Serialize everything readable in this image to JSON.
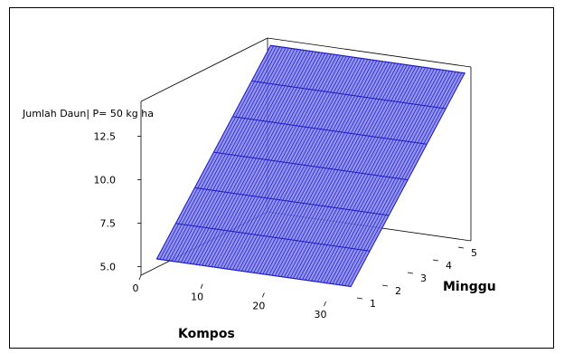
{
  "chart_data": {
    "type": "surface",
    "title": "",
    "zlabel": "Jumlah Daun| P= 50 kg ha",
    "xlabel": "Kompos",
    "ylabel": "Minggu",
    "x_ticks": [
      "0",
      "10",
      "20",
      "30"
    ],
    "y_ticks": [
      "1",
      "2",
      "3",
      "4",
      "5"
    ],
    "z_ticks": [
      "5.0",
      "7.5",
      "10.0",
      "12.5"
    ],
    "x_range": [
      0,
      33
    ],
    "y_range": [
      0.5,
      5.5
    ],
    "z_range": [
      4.5,
      14.5
    ],
    "surface": {
      "x_min": 0.5,
      "x_max": 32,
      "y_min": 1,
      "y_max": 5.5,
      "z_at_y_min": 5.1,
      "z_at_y_max": 14.1,
      "x_grid_lines": 64,
      "y_grid_lines": 6
    },
    "surface_color": "#8080e8",
    "line_color": "#1a1acc"
  }
}
